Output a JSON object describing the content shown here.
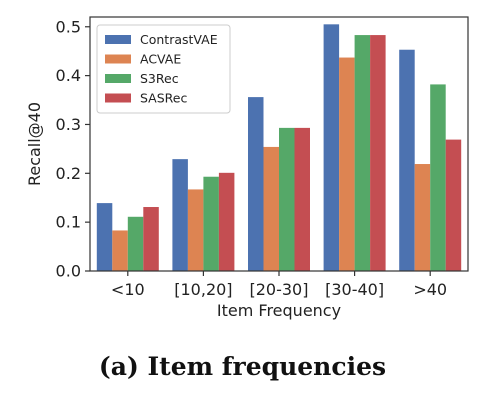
{
  "caption": "(a) Item frequencies",
  "chart_data": {
    "type": "bar",
    "xlabel": "Item Frequency",
    "ylabel": "Recall@40",
    "categories": [
      "<10",
      "[10,20]",
      "[20-30]",
      "[30-40]",
      ">40"
    ],
    "yticks": [
      "0.0",
      "0.1",
      "0.2",
      "0.3",
      "0.4",
      "0.5"
    ],
    "ylim": [
      0,
      0.52
    ],
    "legend_position": "top-left",
    "grid": false,
    "series": [
      {
        "name": "ContrastVAE",
        "color": "#4c72b0",
        "values": [
          0.139,
          0.229,
          0.356,
          0.505,
          0.453
        ]
      },
      {
        "name": "ACVAE",
        "color": "#dd8452",
        "values": [
          0.083,
          0.167,
          0.254,
          0.437,
          0.219
        ]
      },
      {
        "name": "S3Rec",
        "color": "#55a868",
        "values": [
          0.111,
          0.193,
          0.293,
          0.483,
          0.382
        ]
      },
      {
        "name": "SASRec",
        "color": "#c44e52",
        "values": [
          0.131,
          0.201,
          0.293,
          0.483,
          0.269
        ]
      }
    ]
  }
}
